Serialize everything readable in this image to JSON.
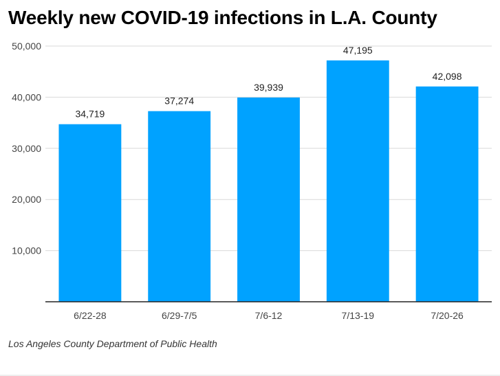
{
  "chart_data": {
    "type": "bar",
    "title": "Weekly new COVID-19 infections in L.A. County",
    "categories": [
      "6/22-28",
      "6/29-7/5",
      "7/6-12",
      "7/13-19",
      "7/20-26"
    ],
    "values": [
      34719,
      37274,
      39939,
      47195,
      42098
    ],
    "value_labels": [
      "34,719",
      "37,274",
      "39,939",
      "47,195",
      "42,098"
    ],
    "y_ticks": [
      10000,
      20000,
      30000,
      40000,
      50000
    ],
    "y_tick_labels": [
      "10,000",
      "20,000",
      "30,000",
      "40,000",
      "50,000"
    ],
    "ylim": [
      0,
      50000
    ],
    "xlabel": "",
    "ylabel": "",
    "grid": true,
    "legend": "none",
    "bar_color": "#00a2ff",
    "source": "Los Angeles County Department of Public Health"
  }
}
